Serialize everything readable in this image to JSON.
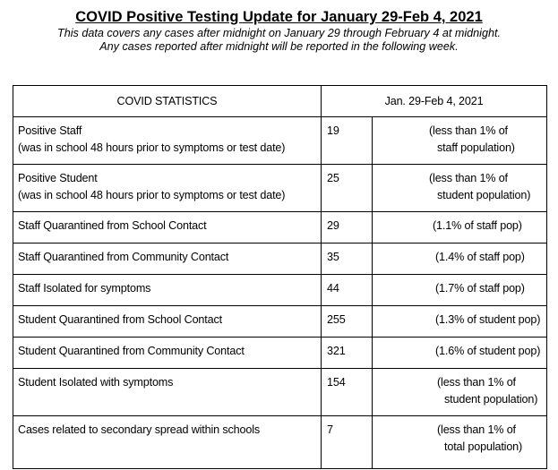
{
  "header": {
    "title": "COVID Positive Testing Update for January 29-Feb 4, 2021",
    "subtitle_line1": "This data covers any cases after midnight on January 29  through February 4 at midnight.",
    "subtitle_line2": "Any cases reported after midnight will be reported in the following week."
  },
  "table": {
    "col_header_stat": "COVID STATISTICS",
    "col_header_period": "Jan. 29-Feb 4, 2021",
    "rows": [
      {
        "label1": "Positive Staff",
        "label2": "(was in school 48 hours prior to symptoms or test date)",
        "count": "19",
        "pct1": "(less than 1% of",
        "pct2": "staff population)"
      },
      {
        "label1": "Positive Student",
        "label2": "(was in school 48 hours prior to symptoms or test date)",
        "count": "25",
        "pct1": "(less than 1% of",
        "pct2": "student population)"
      },
      {
        "label1": "Staff Quarantined from School Contact",
        "count": "29",
        "pct1": "(1.1% of staff pop)"
      },
      {
        "label1": "Staff Quarantined from Community Contact",
        "count": "35",
        "pct1": "(1.4% of staff pop)"
      },
      {
        "label1": "Staff Isolated for symptoms",
        "count": "44",
        "pct1": "(1.7% of staff pop)"
      },
      {
        "label1": "Student Quarantined from School Contact",
        "count": "255",
        "pct1": "(1.3% of student pop)"
      },
      {
        "label1": "Student Quarantined from Community Contact",
        "count": "321",
        "pct1": "(1.6% of student pop)"
      },
      {
        "label1": "Student Isolated with symptoms",
        "count": "154",
        "pct1": "(less than 1% of",
        "pct2": "student population)"
      },
      {
        "label1": "Cases related to secondary spread within schools",
        "count": "7",
        "pct1": "(less than 1% of",
        "pct2": "total population)"
      }
    ]
  }
}
